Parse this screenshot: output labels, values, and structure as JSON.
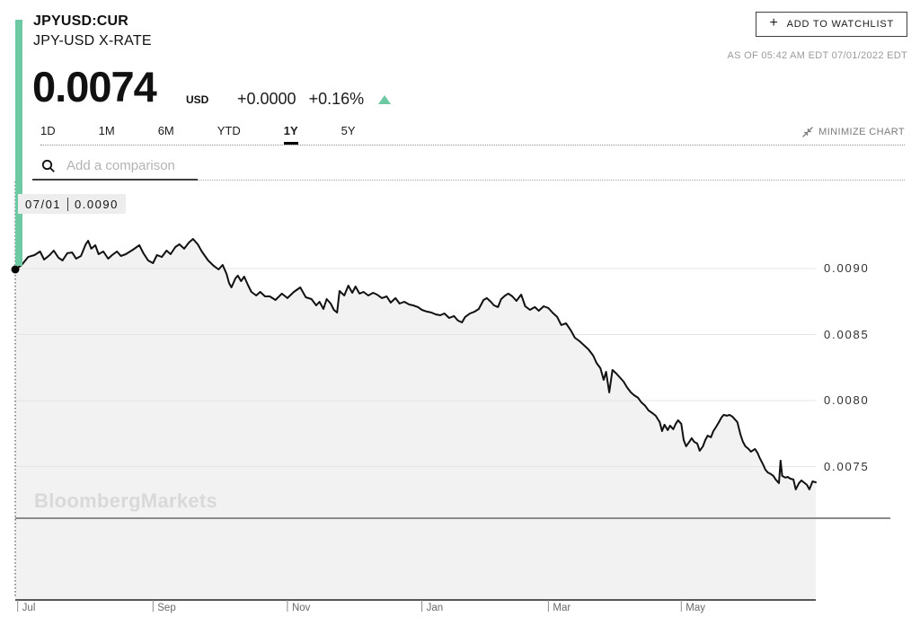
{
  "header": {
    "ticker": "JPYUSD:CUR",
    "title": "JPY-USD X-RATE",
    "watchlist_plus": "+",
    "watchlist_button": "ADD TO WATCHLIST",
    "as_of": "AS OF 05:42 AM EDT 07/01/2022 EDT"
  },
  "quote": {
    "price": "0.0074",
    "currency": "USD",
    "change_abs": "+0.0000",
    "change_pct": "+0.16%",
    "direction": "up"
  },
  "range_tabs": {
    "items": [
      {
        "label": "1D",
        "active": false
      },
      {
        "label": "1M",
        "active": false
      },
      {
        "label": "6M",
        "active": false
      },
      {
        "label": "YTD",
        "active": false
      },
      {
        "label": "1Y",
        "active": true
      },
      {
        "label": "5Y",
        "active": false
      }
    ]
  },
  "toolbar": {
    "minimize_label": "MINIMIZE CHART"
  },
  "comparison": {
    "placeholder": "Add a comparison"
  },
  "tooltip": {
    "date": "07/01",
    "value": "0.0090"
  },
  "watermark": "BloombergMarkets",
  "colors": {
    "accent_green": "#6cc9a1",
    "line": "#111111",
    "area_fill": "#f2f2f2",
    "grid": "#e4e4e4",
    "separator": "#8a8a8a",
    "axis": "#55565a",
    "crosshair": "#2f2f2f"
  },
  "chart_data": {
    "type": "area",
    "title": "JPY-USD X-RATE, 1Y range",
    "x_range": [
      "Jul 2021",
      "Jul 2022"
    ],
    "ylim": [
      0.0065,
      0.0094
    ],
    "grid": true,
    "y_axis": {
      "ticks": [
        0.009,
        0.0085,
        0.008,
        0.0075
      ],
      "side": "right",
      "format_decimals": 4
    },
    "x_axis": {
      "ticks": [
        {
          "t": 0.003,
          "label": "Jul"
        },
        {
          "t": 0.172,
          "label": "Sep"
        },
        {
          "t": 0.34,
          "label": "Nov"
        },
        {
          "t": 0.508,
          "label": "Jan"
        },
        {
          "t": 0.666,
          "label": "Mar"
        },
        {
          "t": 0.832,
          "label": "May"
        }
      ]
    },
    "crosshair": {
      "t": 0.0,
      "date": "07/01",
      "value": 0.009
    },
    "series": [
      {
        "name": "JPYUSD:CUR",
        "points": [
          [
            0.0,
            0.008993
          ],
          [
            0.008,
            0.009027
          ],
          [
            0.016,
            0.009088
          ],
          [
            0.024,
            0.009102
          ],
          [
            0.031,
            0.009129
          ],
          [
            0.036,
            0.009068
          ],
          [
            0.043,
            0.009102
          ],
          [
            0.048,
            0.009136
          ],
          [
            0.054,
            0.009082
          ],
          [
            0.059,
            0.009061
          ],
          [
            0.065,
            0.009116
          ],
          [
            0.071,
            0.009122
          ],
          [
            0.076,
            0.009075
          ],
          [
            0.082,
            0.009095
          ],
          [
            0.088,
            0.009184
          ],
          [
            0.091,
            0.009211
          ],
          [
            0.095,
            0.00915
          ],
          [
            0.1,
            0.009177
          ],
          [
            0.104,
            0.009109
          ],
          [
            0.11,
            0.009129
          ],
          [
            0.116,
            0.009075
          ],
          [
            0.121,
            0.009102
          ],
          [
            0.127,
            0.009129
          ],
          [
            0.132,
            0.009095
          ],
          [
            0.138,
            0.009109
          ],
          [
            0.147,
            0.009143
          ],
          [
            0.155,
            0.009177
          ],
          [
            0.16,
            0.009116
          ],
          [
            0.166,
            0.009061
          ],
          [
            0.172,
            0.009041
          ],
          [
            0.177,
            0.009102
          ],
          [
            0.183,
            0.009088
          ],
          [
            0.189,
            0.009136
          ],
          [
            0.194,
            0.009109
          ],
          [
            0.2,
            0.009163
          ],
          [
            0.205,
            0.009184
          ],
          [
            0.211,
            0.00915
          ],
          [
            0.217,
            0.009197
          ],
          [
            0.222,
            0.009224
          ],
          [
            0.228,
            0.009184
          ],
          [
            0.233,
            0.009129
          ],
          [
            0.241,
            0.009061
          ],
          [
            0.248,
            0.00902
          ],
          [
            0.254,
            0.008993
          ],
          [
            0.259,
            0.009027
          ],
          [
            0.264,
            0.008959
          ],
          [
            0.267,
            0.008891
          ],
          [
            0.27,
            0.008857
          ],
          [
            0.275,
            0.008925
          ],
          [
            0.278,
            0.008946
          ],
          [
            0.282,
            0.008905
          ],
          [
            0.286,
            0.008939
          ],
          [
            0.291,
            0.008871
          ],
          [
            0.295,
            0.008823
          ],
          [
            0.301,
            0.008796
          ],
          [
            0.306,
            0.008823
          ],
          [
            0.312,
            0.008789
          ],
          [
            0.318,
            0.008789
          ],
          [
            0.325,
            0.008762
          ],
          [
            0.333,
            0.00881
          ],
          [
            0.34,
            0.008776
          ],
          [
            0.348,
            0.008823
          ],
          [
            0.356,
            0.008857
          ],
          [
            0.363,
            0.008782
          ],
          [
            0.37,
            0.008769
          ],
          [
            0.376,
            0.008721
          ],
          [
            0.38,
            0.008748
          ],
          [
            0.385,
            0.008694
          ],
          [
            0.389,
            0.008769
          ],
          [
            0.394,
            0.008735
          ],
          [
            0.398,
            0.008687
          ],
          [
            0.402,
            0.008667
          ],
          [
            0.405,
            0.00883
          ],
          [
            0.411,
            0.008796
          ],
          [
            0.416,
            0.008871
          ],
          [
            0.421,
            0.008816
          ],
          [
            0.425,
            0.008864
          ],
          [
            0.43,
            0.00881
          ],
          [
            0.435,
            0.008823
          ],
          [
            0.441,
            0.008796
          ],
          [
            0.447,
            0.008816
          ],
          [
            0.452,
            0.008803
          ],
          [
            0.458,
            0.008776
          ],
          [
            0.464,
            0.008789
          ],
          [
            0.469,
            0.008742
          ],
          [
            0.475,
            0.008776
          ],
          [
            0.48,
            0.008735
          ],
          [
            0.486,
            0.008748
          ],
          [
            0.492,
            0.008728
          ],
          [
            0.497,
            0.008721
          ],
          [
            0.503,
            0.008708
          ],
          [
            0.508,
            0.008687
          ],
          [
            0.514,
            0.008674
          ],
          [
            0.52,
            0.008667
          ],
          [
            0.525,
            0.008653
          ],
          [
            0.531,
            0.008646
          ],
          [
            0.536,
            0.00866
          ],
          [
            0.542,
            0.008626
          ],
          [
            0.548,
            0.00864
          ],
          [
            0.553,
            0.008606
          ],
          [
            0.558,
            0.008592
          ],
          [
            0.562,
            0.008633
          ],
          [
            0.568,
            0.00866
          ],
          [
            0.574,
            0.008674
          ],
          [
            0.579,
            0.008694
          ],
          [
            0.585,
            0.008762
          ],
          [
            0.589,
            0.008776
          ],
          [
            0.594,
            0.008748
          ],
          [
            0.598,
            0.008721
          ],
          [
            0.603,
            0.008708
          ],
          [
            0.607,
            0.008769
          ],
          [
            0.612,
            0.008796
          ],
          [
            0.616,
            0.00881
          ],
          [
            0.621,
            0.008789
          ],
          [
            0.626,
            0.008755
          ],
          [
            0.632,
            0.008803
          ],
          [
            0.637,
            0.008714
          ],
          [
            0.643,
            0.008687
          ],
          [
            0.649,
            0.008708
          ],
          [
            0.654,
            0.00868
          ],
          [
            0.66,
            0.008714
          ],
          [
            0.666,
            0.008701
          ],
          [
            0.671,
            0.008667
          ],
          [
            0.677,
            0.008633
          ],
          [
            0.682,
            0.008572
          ],
          [
            0.688,
            0.008585
          ],
          [
            0.694,
            0.008531
          ],
          [
            0.699,
            0.008476
          ],
          [
            0.705,
            0.008449
          ],
          [
            0.71,
            0.008422
          ],
          [
            0.716,
            0.008388
          ],
          [
            0.722,
            0.00834
          ],
          [
            0.726,
            0.008286
          ],
          [
            0.731,
            0.008245
          ],
          [
            0.735,
            0.008157
          ],
          [
            0.738,
            0.008218
          ],
          [
            0.742,
            0.008062
          ],
          [
            0.746,
            0.008232
          ],
          [
            0.751,
            0.008204
          ],
          [
            0.755,
            0.008177
          ],
          [
            0.76,
            0.008143
          ],
          [
            0.764,
            0.008102
          ],
          [
            0.769,
            0.008062
          ],
          [
            0.773,
            0.008041
          ],
          [
            0.778,
            0.008021
          ],
          [
            0.782,
            0.007987
          ],
          [
            0.787,
            0.00796
          ],
          [
            0.791,
            0.007926
          ],
          [
            0.796,
            0.007905
          ],
          [
            0.8,
            0.007885
          ],
          [
            0.805,
            0.007837
          ],
          [
            0.808,
            0.007769
          ],
          [
            0.811,
            0.007817
          ],
          [
            0.815,
            0.007776
          ],
          [
            0.818,
            0.00781
          ],
          [
            0.822,
            0.007783
          ],
          [
            0.825,
            0.007824
          ],
          [
            0.828,
            0.007851
          ],
          [
            0.832,
            0.007824
          ],
          [
            0.835,
            0.007701
          ],
          [
            0.838,
            0.007654
          ],
          [
            0.842,
            0.007688
          ],
          [
            0.845,
            0.007715
          ],
          [
            0.848,
            0.007688
          ],
          [
            0.852,
            0.007674
          ],
          [
            0.855,
            0.00762
          ],
          [
            0.859,
            0.007654
          ],
          [
            0.862,
            0.007701
          ],
          [
            0.865,
            0.007735
          ],
          [
            0.869,
            0.007722
          ],
          [
            0.872,
            0.007769
          ],
          [
            0.875,
            0.007796
          ],
          [
            0.879,
            0.007837
          ],
          [
            0.882,
            0.007871
          ],
          [
            0.885,
            0.007892
          ],
          [
            0.889,
            0.007885
          ],
          [
            0.892,
            0.007892
          ],
          [
            0.896,
            0.007878
          ],
          [
            0.899,
            0.007858
          ],
          [
            0.902,
            0.007837
          ],
          [
            0.906,
            0.007742
          ],
          [
            0.909,
            0.007688
          ],
          [
            0.912,
            0.007654
          ],
          [
            0.916,
            0.007633
          ],
          [
            0.919,
            0.007613
          ],
          [
            0.924,
            0.007633
          ],
          [
            0.927,
            0.007606
          ],
          [
            0.93,
            0.007565
          ],
          [
            0.934,
            0.007518
          ],
          [
            0.937,
            0.007477
          ],
          [
            0.94,
            0.007456
          ],
          [
            0.944,
            0.007443
          ],
          [
            0.947,
            0.007429
          ],
          [
            0.95,
            0.007402
          ],
          [
            0.954,
            0.007375
          ],
          [
            0.956,
            0.007545
          ],
          [
            0.958,
            0.007429
          ],
          [
            0.962,
            0.007416
          ],
          [
            0.965,
            0.007422
          ],
          [
            0.968,
            0.007409
          ],
          [
            0.972,
            0.007402
          ],
          [
            0.975,
            0.007327
          ],
          [
            0.979,
            0.007375
          ],
          [
            0.982,
            0.007395
          ],
          [
            0.985,
            0.007381
          ],
          [
            0.989,
            0.007361
          ],
          [
            0.992,
            0.007327
          ],
          [
            0.996,
            0.007388
          ],
          [
            1.0,
            0.007381
          ]
        ]
      }
    ]
  }
}
